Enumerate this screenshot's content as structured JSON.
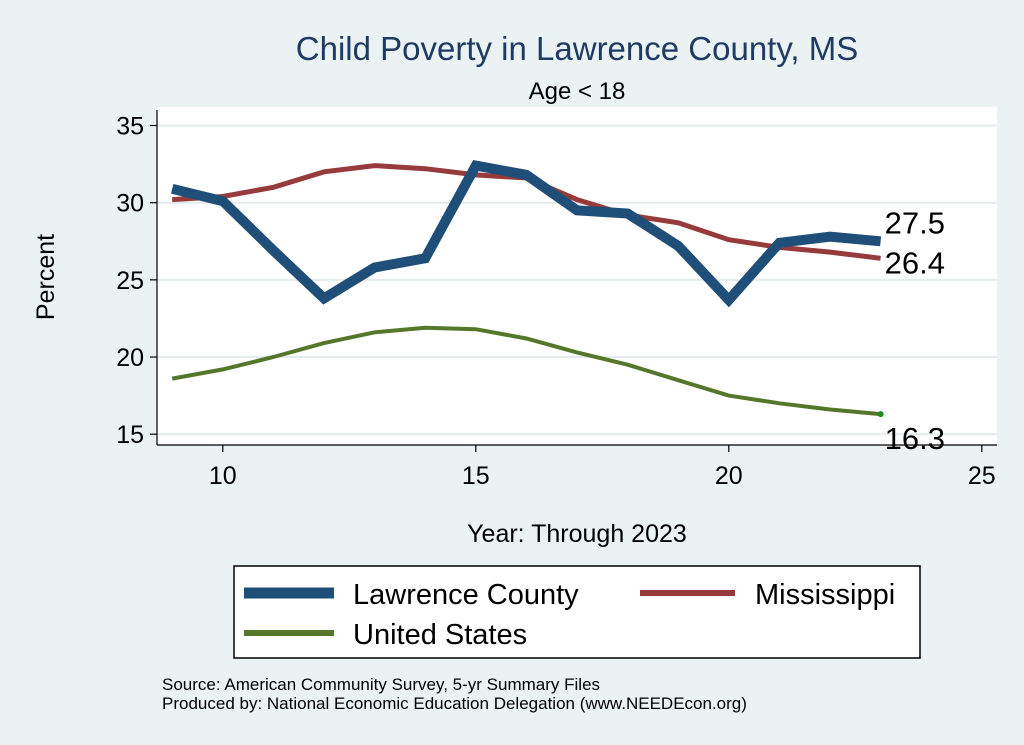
{
  "chart_data": {
    "type": "line",
    "title": "Child Poverty in Lawrence County, MS",
    "subtitle": "Age < 18",
    "xlabel": "Year: Through 2023",
    "ylabel": "Percent",
    "xlim": [
      8.7,
      25.3
    ],
    "ylim": [
      14.3,
      36.2
    ],
    "xticks": [
      10,
      15,
      20,
      25
    ],
    "yticks": [
      15,
      20,
      25,
      30,
      35
    ],
    "grid": true,
    "legend_position": "bottom",
    "series": [
      {
        "name": "Lawrence County",
        "color": "#1f4e79",
        "x": [
          9,
          10,
          11,
          12,
          13,
          14,
          15,
          16,
          17,
          18,
          19,
          20,
          21,
          22,
          23
        ],
        "values": [
          30.9,
          30.1,
          26.9,
          23.8,
          25.8,
          26.4,
          32.4,
          31.8,
          29.5,
          29.3,
          27.2,
          23.7,
          27.4,
          27.8,
          27.5
        ],
        "end_label": "27.5"
      },
      {
        "name": "Mississippi",
        "color": "#963a3c",
        "x": [
          9,
          10,
          11,
          12,
          13,
          14,
          15,
          16,
          17,
          18,
          19,
          20,
          21,
          22,
          23
        ],
        "values": [
          30.2,
          30.4,
          31.0,
          32.0,
          32.4,
          32.2,
          31.8,
          31.6,
          30.2,
          29.2,
          28.7,
          27.6,
          27.1,
          26.8,
          26.4
        ],
        "end_label": "26.4"
      },
      {
        "name": "United States",
        "color": "#55772c",
        "x": [
          9,
          10,
          11,
          12,
          13,
          14,
          15,
          16,
          17,
          18,
          19,
          20,
          21,
          22,
          23
        ],
        "values": [
          18.6,
          19.2,
          20.0,
          20.9,
          21.6,
          21.9,
          21.8,
          21.2,
          20.3,
          19.5,
          18.5,
          17.5,
          17.0,
          16.6,
          16.3
        ],
        "end_label": "16.3"
      }
    ]
  },
  "notes": {
    "source": "Source: American Community Survey, 5-yr Summary Files",
    "produced_by": "Produced by: National Economic Education Delegation (www.NEEDEcon.org)"
  }
}
